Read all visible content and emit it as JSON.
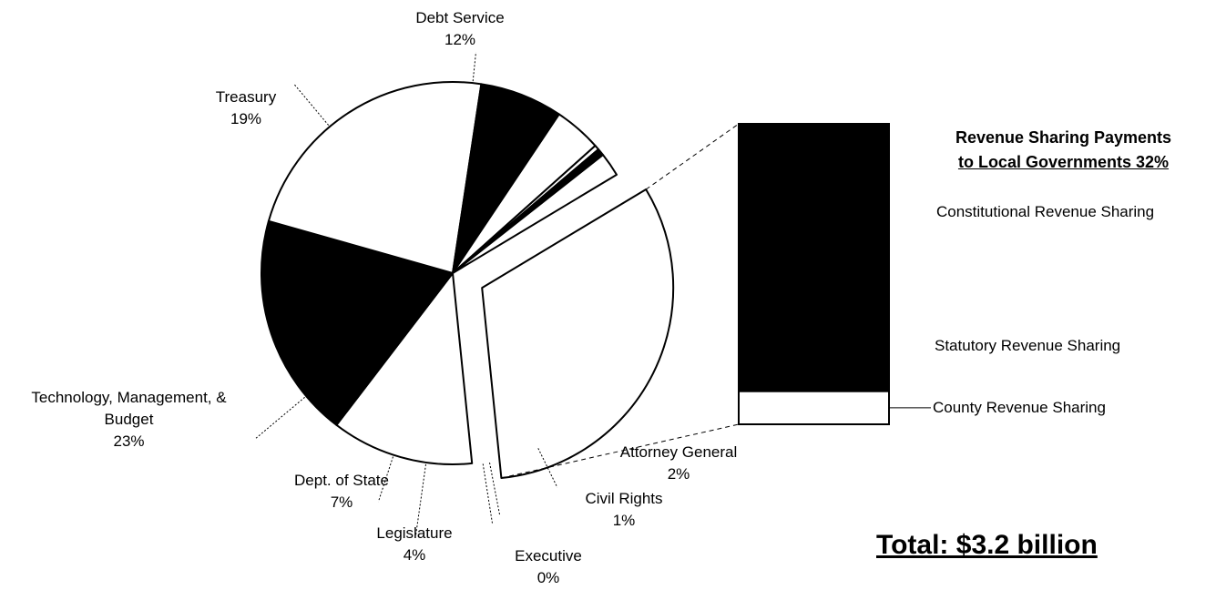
{
  "chart_data": {
    "type": "pie",
    "slices": [
      {
        "label": "Revenue Sharing Payments to Local Governments",
        "value": 32,
        "display": "32%",
        "color": "#ffffff",
        "exploded": true
      },
      {
        "label": "Debt Service",
        "value": 12,
        "display": "12%",
        "color": "#ffffff"
      },
      {
        "label": "Treasury",
        "value": 19,
        "display": "19%",
        "color": "#000000"
      },
      {
        "label": "Technology, Management, & Budget",
        "value": 23,
        "display": "23%",
        "color": "#ffffff"
      },
      {
        "label": "Dept. of State",
        "value": 7,
        "display": "7%",
        "color": "#000000"
      },
      {
        "label": "Legislature",
        "value": 4,
        "display": "4%",
        "color": "#ffffff"
      },
      {
        "label": "Executive",
        "value": 0.4,
        "display": "0%",
        "color": "#ffffff"
      },
      {
        "label": "Civil Rights",
        "value": 0.6,
        "display": "1%",
        "color": "#000000"
      },
      {
        "label": "Attorney General",
        "value": 2,
        "display": "2%",
        "color": "#ffffff"
      }
    ],
    "breakdown": {
      "title_line1": "Revenue Sharing Payments",
      "title_line2": "to Local Governments 32%",
      "segments": [
        {
          "label": "Constitutional Revenue Sharing",
          "color": "#000000"
        },
        {
          "label": "Statutory Revenue Sharing",
          "color": "#000000"
        },
        {
          "label": "County Revenue Sharing",
          "color": "#ffffff",
          "share": 0.11
        }
      ]
    },
    "total": "Total:  $3.2 billion"
  },
  "labels": {
    "debt_service": {
      "name": "Debt Service",
      "pct": "12%"
    },
    "treasury": {
      "name": "Treasury",
      "pct": "19%"
    },
    "tmb": {
      "name1": "Technology, Management, &",
      "name2": "Budget",
      "pct": "23%"
    },
    "dept_state": {
      "name": "Dept. of State",
      "pct": "7%"
    },
    "legislature": {
      "name": "Legislature",
      "pct": "4%"
    },
    "executive": {
      "name": "Executive",
      "pct": "0%"
    },
    "civil_rights": {
      "name": "Civil Rights",
      "pct": "1%"
    },
    "attorney_general": {
      "name": "Attorney General",
      "pct": "2%"
    }
  }
}
